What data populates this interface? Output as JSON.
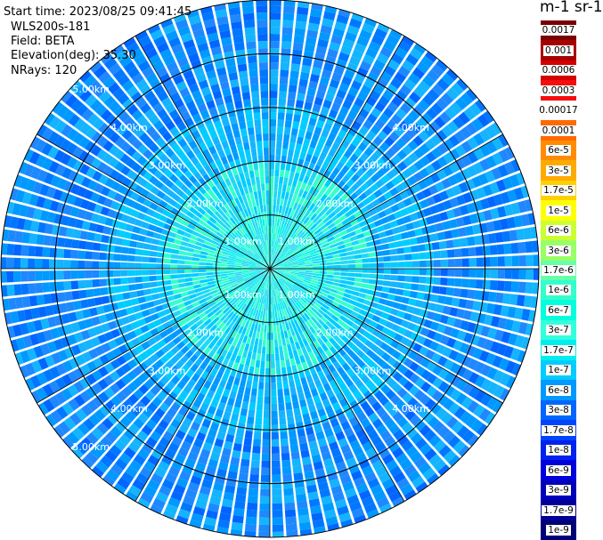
{
  "header": {
    "start_time": "Start time: 2023/08/25 09:41:45",
    "instrument": "WLS200s-181",
    "field": "Field: BETA",
    "elevation": "Elevation(deg): 35.30",
    "nrays": "NRays: 120"
  },
  "colorbar": {
    "units": "m-1 sr-1",
    "labels": [
      "0.0017",
      "0.001",
      "0.0006",
      "0.0003",
      "0.00017",
      "0.0001",
      "6e-5",
      "3e-5",
      "1.7e-5",
      "1e-5",
      "6e-6",
      "3e-6",
      "1.7e-6",
      "1e-6",
      "6e-7",
      "3e-7",
      "1.7e-7",
      "1e-7",
      "6e-8",
      "3e-8",
      "1.7e-8",
      "1e-8",
      "6e-9",
      "3e-9",
      "1.7e-9",
      "1e-9"
    ],
    "colors": [
      "#7a0000",
      "#a80000",
      "#d40000",
      "#f40e0e",
      "#ffffff",
      "#ff6a00",
      "#ff8c00",
      "#ffaa00",
      "#ffd000",
      "#ffff00",
      "#ccff33",
      "#99ff66",
      "#66ffaa",
      "#33ffcc",
      "#00ffdd",
      "#33ffdd",
      "#00eeee",
      "#00ccff",
      "#0099ff",
      "#0066ff",
      "#0044ff",
      "#0022ee",
      "#0000dd",
      "#0000bb",
      "#000099",
      "#000077"
    ]
  },
  "chart_data": {
    "type": "ppi",
    "field": "BETA",
    "nrays": 120,
    "max_range_km": 5.0,
    "range_rings_km": [
      1.0,
      2.0,
      3.0,
      4.0,
      5.0
    ],
    "ring_labels": [
      "1.00km",
      "2.00km",
      "3.00km",
      "4.00km",
      "5.00km"
    ],
    "radial_spokes_deg": [
      0,
      30,
      60,
      90,
      120,
      150,
      180,
      210,
      240,
      270,
      300,
      330
    ],
    "colorscale": "log",
    "value_range": [
      1e-09,
      0.0017
    ]
  }
}
